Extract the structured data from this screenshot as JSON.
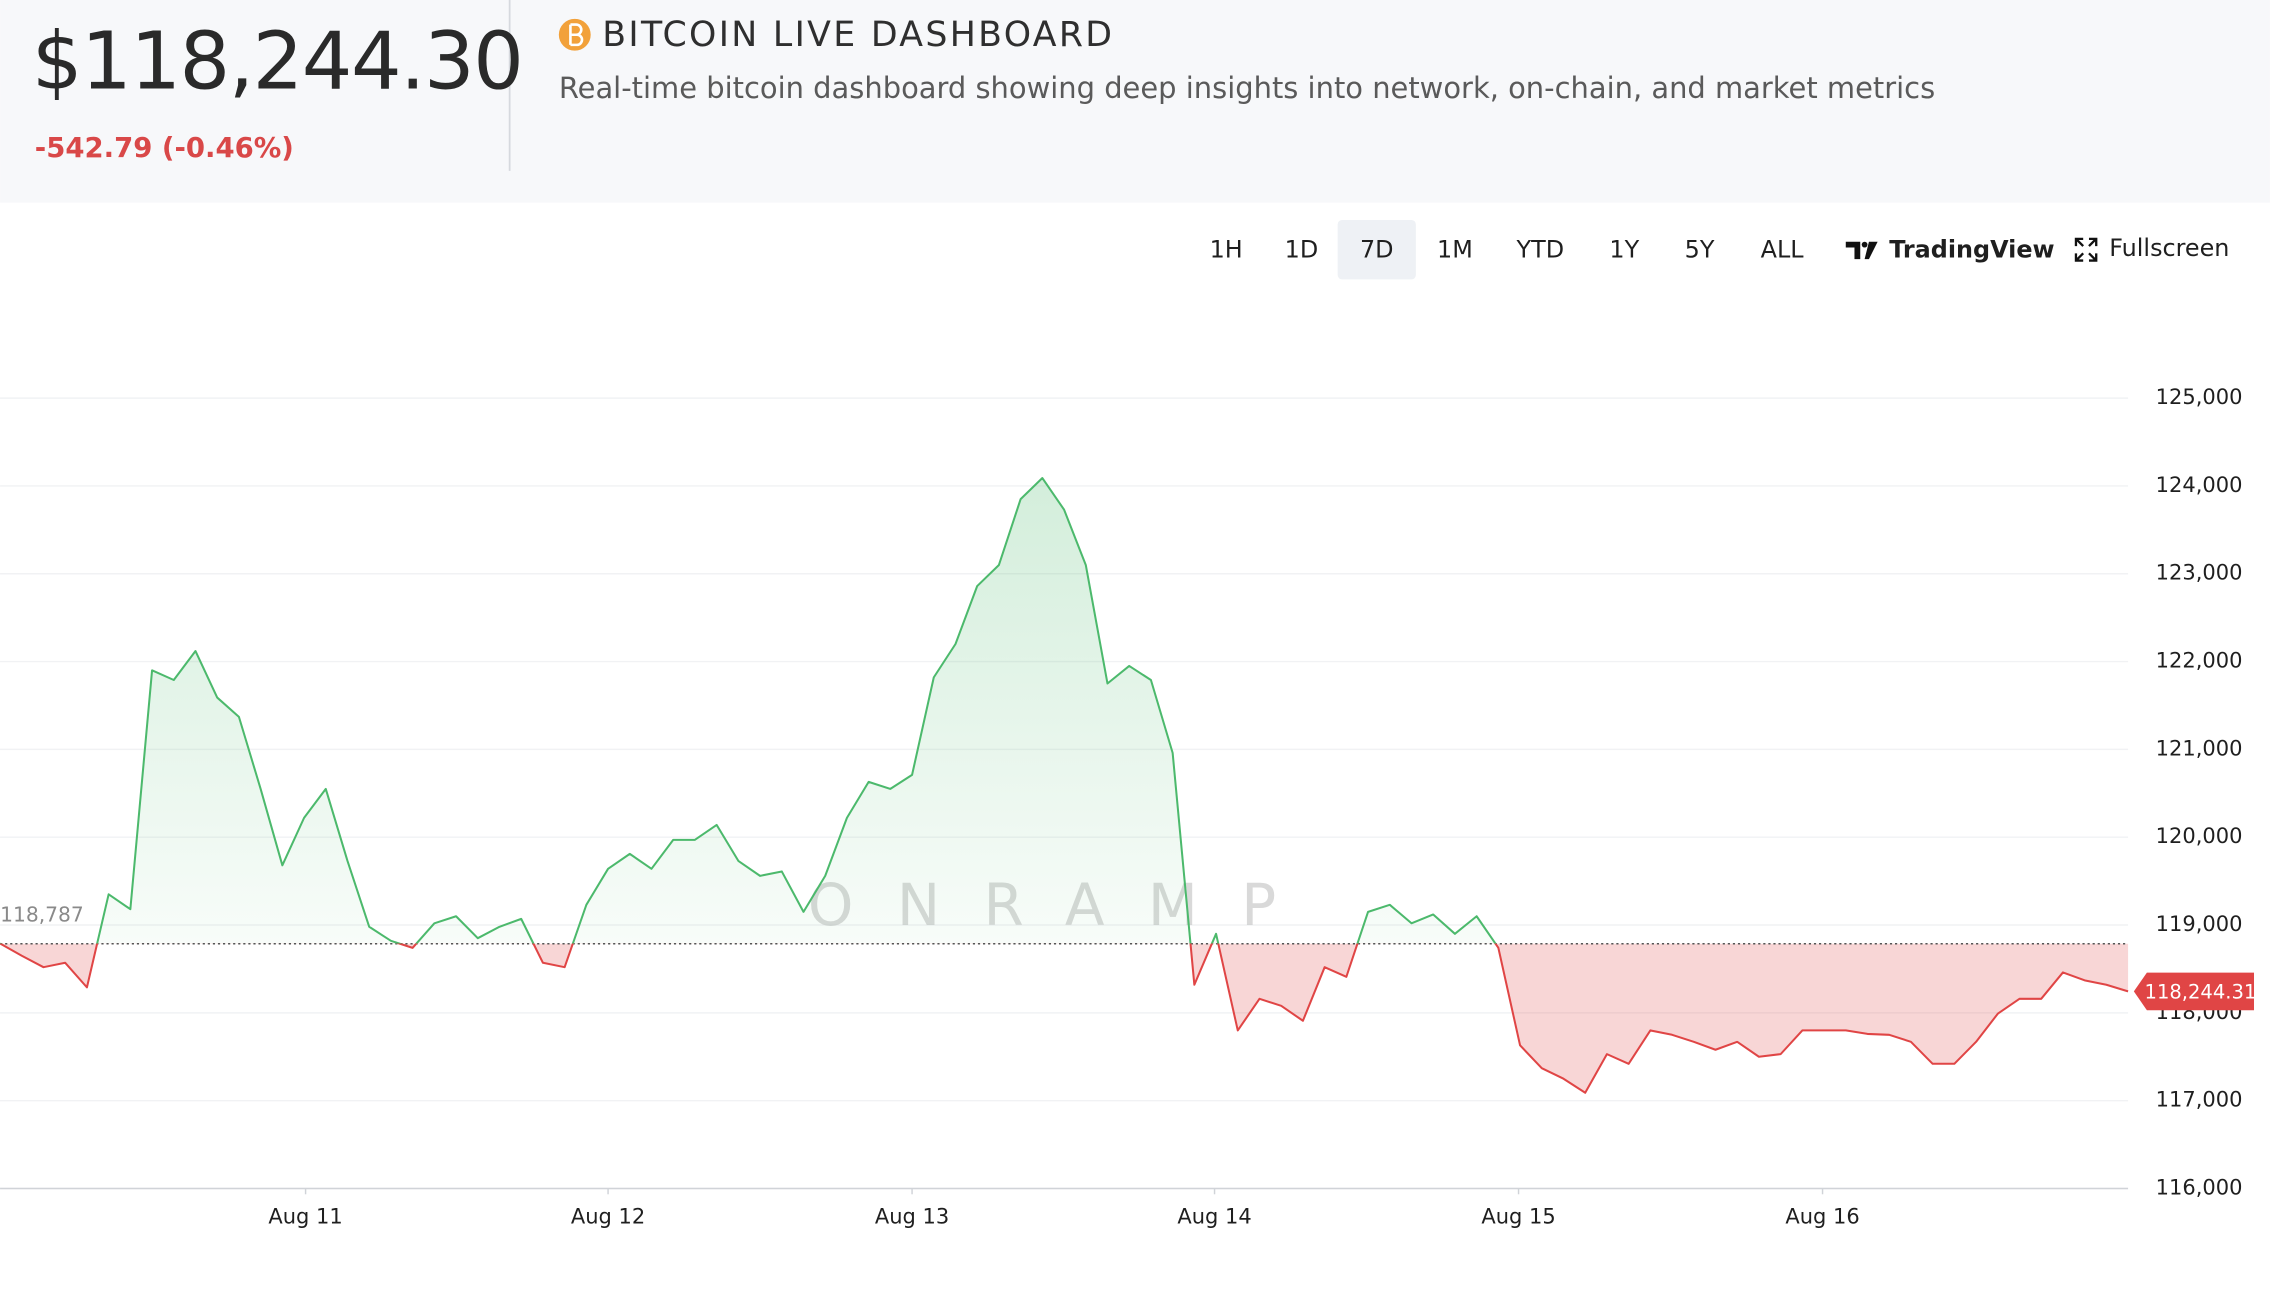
{
  "header": {
    "price": "$118,244.30",
    "change": "-542.79 (-0.46%)",
    "title": "BITCOIN LIVE DASHBOARD",
    "subtitle": "Real-time bitcoin dashboard showing deep insights into network, on-chain, and market metrics"
  },
  "toolbar": {
    "ranges": [
      "1H",
      "1D",
      "7D",
      "1M",
      "YTD",
      "1Y",
      "5Y",
      "ALL"
    ],
    "selected": "7D",
    "tradingview": "TradingView",
    "fullscreen": "Fullscreen"
  },
  "chart_data": {
    "type": "area",
    "watermark": "ONRAMP",
    "series": [
      {
        "name": "BTC",
        "up_color": "#4cb96c",
        "down_color": "#e04545",
        "values": [
          118790,
          118650,
          118520,
          118570,
          118290,
          119350,
          119180,
          121900,
          121790,
          122120,
          121590,
          121370,
          120550,
          119680,
          120220,
          120550,
          119730,
          118980,
          118820,
          118740,
          119020,
          119100,
          118850,
          118980,
          119070,
          118570,
          118520,
          119230,
          119640,
          119810,
          119640,
          119970,
          119970,
          120140,
          119730,
          119560,
          119610,
          119150,
          119560,
          120220,
          120630,
          120550,
          120710,
          121820,
          122200,
          122860,
          123100,
          123850,
          124090,
          123730,
          123100,
          121750,
          121950,
          121790,
          120960,
          118320,
          118900,
          117800,
          118160,
          118080,
          117910,
          118520,
          118410,
          119150,
          119230,
          119020,
          119120,
          118900,
          119100,
          118740,
          117630,
          117370,
          117250,
          117090,
          117530,
          117420,
          117800,
          117750,
          117670,
          117580,
          117670,
          117500,
          117530,
          117800,
          117800,
          117800,
          117760,
          117750,
          117670,
          117420,
          117420,
          117670,
          117990,
          118160,
          118160,
          118460,
          118370,
          118320,
          118244.31
        ]
      }
    ],
    "baseline": {
      "value": 118787,
      "label": "118,787"
    },
    "last_price": {
      "value": 118244.31,
      "label": "118,244.31"
    },
    "xlim": [
      0,
      98
    ],
    "xticks": [
      {
        "value": 14.07,
        "label": "Aug 11"
      },
      {
        "value": 28,
        "label": "Aug 12"
      },
      {
        "value": 42,
        "label": "Aug 13"
      },
      {
        "value": 55.93,
        "label": "Aug 14"
      },
      {
        "value": 69.93,
        "label": "Aug 15"
      },
      {
        "value": 83.93,
        "label": "Aug 16"
      }
    ],
    "ylim": [
      116000,
      125000
    ],
    "yticks": [
      {
        "value": 116000,
        "label": "116,000"
      },
      {
        "value": 117000,
        "label": "117,000"
      },
      {
        "value": 118000,
        "label": "118,000"
      },
      {
        "value": 119000,
        "label": "119,000"
      },
      {
        "value": 120000,
        "label": "120,000"
      },
      {
        "value": 121000,
        "label": "121,000"
      },
      {
        "value": 122000,
        "label": "122,000"
      },
      {
        "value": 123000,
        "label": "123,000"
      },
      {
        "value": 124000,
        "label": "124,000"
      },
      {
        "value": 125000,
        "label": "125,000"
      }
    ],
    "grid": true
  }
}
